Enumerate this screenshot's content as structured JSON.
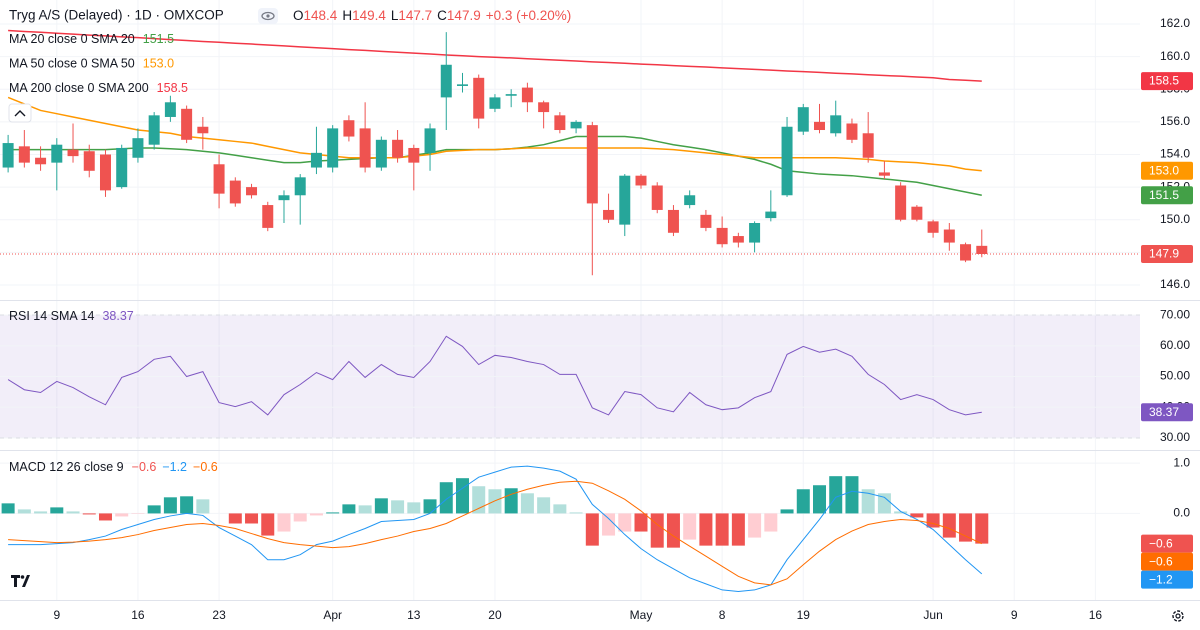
{
  "chart_data": [
    {
      "type": "candlestick",
      "title": "Tryg A/S (Delayed) · 1D · OMXCOP",
      "ohlc_keys": [
        "O",
        "H",
        "L",
        "C"
      ],
      "change": "+0.3 (+0.20%)",
      "up_color": "#26a69a",
      "down_color": "#ef5350",
      "xlim": [
        -0.5,
        69.75
      ],
      "xticks": [
        {
          "value": 3,
          "label": "9"
        },
        {
          "value": 8,
          "label": "16"
        },
        {
          "value": 13,
          "label": "23"
        },
        {
          "value": 20,
          "label": "Apr"
        },
        {
          "value": 25,
          "label": "13"
        },
        {
          "value": 30,
          "label": "20"
        },
        {
          "value": 39,
          "label": "May"
        },
        {
          "value": 44,
          "label": "8"
        },
        {
          "value": 49,
          "label": "19"
        },
        {
          "value": 57,
          "label": "Jun"
        },
        {
          "value": 62,
          "label": "9"
        },
        {
          "value": 67,
          "label": "16"
        }
      ],
      "ylim": [
        145.08,
        163.47
      ],
      "yticks": [
        {
          "value": 146,
          "label": "146.0"
        },
        {
          "value": 148,
          "label": "148.0"
        },
        {
          "value": 150,
          "label": "150.0"
        },
        {
          "value": 152,
          "label": "152.0"
        },
        {
          "value": 154,
          "label": "154.0"
        },
        {
          "value": 156,
          "label": "156.0"
        },
        {
          "value": 158,
          "label": "158.0"
        },
        {
          "value": 160,
          "label": "160.0"
        },
        {
          "value": 162,
          "label": "162.0"
        }
      ],
      "grid": true,
      "open": [
        153.2,
        154.5,
        153.8,
        153.5,
        154.3,
        154.2,
        154.0,
        152.0,
        153.8,
        154.6,
        156.3,
        156.8,
        155.7,
        153.4,
        152.4,
        152.0,
        150.9,
        151.2,
        151.5,
        153.2,
        153.2,
        156.1,
        155.6,
        153.2,
        154.9,
        154.4,
        154.1,
        157.5,
        158.2,
        158.7,
        156.8,
        157.6,
        158.1,
        157.2,
        156.4,
        155.6,
        155.8,
        150.6,
        149.7,
        152.7,
        152.1,
        150.6,
        150.9,
        150.3,
        149.5,
        149.0,
        148.6,
        150.1,
        151.5,
        155.4,
        156.0,
        155.3,
        155.9,
        155.3,
        152.9,
        152.1,
        150.8,
        149.9,
        149.4,
        148.5,
        148.4
      ],
      "high": [
        155.2,
        155.5,
        154.5,
        155.0,
        155.9,
        154.6,
        154.3,
        154.6,
        155.6,
        156.6,
        157.6,
        157.0,
        156.3,
        154.0,
        152.6,
        152.2,
        151.1,
        151.8,
        152.8,
        155.7,
        155.8,
        156.4,
        157.2,
        155.1,
        155.5,
        154.6,
        155.9,
        161.5,
        159.0,
        158.9,
        157.7,
        158.0,
        158.4,
        157.3,
        156.6,
        156.1,
        156.0,
        151.6,
        152.8,
        152.8,
        152.3,
        150.9,
        151.8,
        150.6,
        150.2,
        149.2,
        149.9,
        151.8,
        156.3,
        157.1,
        157.1,
        157.3,
        156.2,
        156.6,
        153.6,
        152.3,
        150.9,
        150.0,
        149.8,
        148.6,
        149.4
      ],
      "low": [
        152.9,
        153.2,
        153.0,
        151.8,
        153.5,
        152.6,
        151.4,
        151.9,
        153.5,
        154.3,
        156.0,
        154.7,
        154.3,
        150.7,
        150.8,
        151.3,
        149.3,
        149.8,
        149.7,
        152.8,
        152.9,
        154.8,
        152.9,
        153.0,
        153.5,
        151.8,
        153.0,
        155.5,
        157.8,
        155.6,
        156.6,
        156.9,
        156.6,
        155.6,
        155.3,
        155.3,
        146.6,
        149.8,
        149.0,
        151.9,
        150.4,
        149.0,
        150.7,
        149.3,
        148.3,
        148.3,
        148.0,
        149.9,
        151.4,
        155.2,
        155.3,
        155.1,
        154.7,
        153.5,
        152.5,
        149.9,
        149.9,
        148.9,
        148.1,
        147.4,
        147.7
      ],
      "close": [
        154.7,
        153.5,
        153.4,
        154.6,
        153.9,
        153.0,
        151.8,
        154.4,
        155.0,
        156.4,
        157.2,
        154.9,
        155.3,
        151.6,
        151.0,
        151.5,
        149.5,
        151.5,
        152.6,
        154.1,
        155.6,
        155.1,
        153.2,
        154.9,
        153.8,
        153.5,
        155.6,
        159.5,
        158.3,
        156.2,
        157.5,
        157.7,
        157.2,
        156.6,
        155.5,
        156.0,
        151.0,
        150.0,
        152.7,
        152.1,
        150.6,
        149.2,
        151.5,
        149.5,
        148.5,
        148.6,
        149.8,
        150.5,
        155.7,
        156.9,
        155.5,
        156.4,
        154.9,
        153.8,
        152.7,
        150.0,
        150.0,
        149.2,
        148.6,
        147.5,
        147.9
      ],
      "series": [
        {
          "name": "MA 20 close 0 SMA 20",
          "color": "#43a047",
          "last_label": "151.5",
          "values": [
            154.3,
            154.3,
            154.3,
            154.3,
            154.3,
            154.3,
            154.3,
            154.35,
            154.4,
            154.4,
            154.35,
            154.3,
            154.2,
            154.1,
            153.95,
            153.8,
            153.65,
            153.5,
            153.5,
            153.6,
            153.65,
            153.7,
            153.75,
            153.8,
            153.8,
            153.95,
            154.1,
            154.3,
            154.3,
            154.3,
            154.3,
            154.35,
            154.45,
            154.6,
            154.85,
            155.1,
            155.1,
            155.1,
            155.1,
            155.0,
            154.8,
            154.6,
            154.45,
            154.3,
            154.1,
            153.9,
            153.7,
            153.4,
            153.0,
            152.9,
            152.8,
            152.75,
            152.7,
            152.6,
            152.5,
            152.4,
            152.3,
            152.1,
            151.9,
            151.7,
            151.5
          ]
        },
        {
          "name": "MA 50 close 0 SMA 50",
          "color": "#ff9800",
          "last_label": "153.0",
          "values": [
            157.5,
            157.1,
            156.7,
            156.5,
            156.3,
            156.1,
            155.9,
            155.7,
            155.5,
            155.4,
            155.3,
            155.1,
            155.0,
            154.9,
            154.8,
            154.7,
            154.5,
            154.3,
            154.1,
            154.0,
            153.9,
            153.8,
            153.8,
            153.8,
            153.8,
            153.9,
            154.0,
            154.2,
            154.25,
            154.3,
            154.3,
            154.35,
            154.4,
            154.4,
            154.4,
            154.4,
            154.4,
            154.4,
            154.4,
            154.4,
            154.35,
            154.3,
            154.2,
            154.1,
            154.0,
            153.9,
            153.8,
            153.8,
            153.8,
            153.8,
            153.8,
            153.8,
            153.75,
            153.7,
            153.6,
            153.55,
            153.5,
            153.4,
            153.3,
            153.1,
            153.0
          ]
        },
        {
          "name": "MA 200 close 0 SMA 200",
          "color": "#f23645",
          "last_label": "158.5",
          "values": [
            161.6,
            161.54,
            161.49,
            161.43,
            161.38,
            161.32,
            161.27,
            161.21,
            161.16,
            161.1,
            161.04,
            160.99,
            160.93,
            160.88,
            160.82,
            160.77,
            160.71,
            160.66,
            160.6,
            160.54,
            160.49,
            160.43,
            160.38,
            160.32,
            160.27,
            160.21,
            160.16,
            160.1,
            160.05,
            160.0,
            159.96,
            159.92,
            159.87,
            159.82,
            159.78,
            159.73,
            159.68,
            159.64,
            159.59,
            159.54,
            159.5,
            159.45,
            159.4,
            159.36,
            159.31,
            159.26,
            159.22,
            159.17,
            159.12,
            159.08,
            159.03,
            158.98,
            158.94,
            158.89,
            158.84,
            158.8,
            158.75,
            158.7,
            158.6,
            158.55,
            158.5
          ]
        }
      ]
    },
    {
      "type": "rsi",
      "title": "RSI 14 SMA 14",
      "color": "#7e57c2",
      "band": [
        30,
        70
      ],
      "band_color": "#7e57c2",
      "ylim": [
        26.07,
        74.92
      ],
      "yticks": [
        {
          "value": 30,
          "label": "30.00"
        },
        {
          "value": 40,
          "label": "40.00"
        },
        {
          "value": 50,
          "label": "50.00"
        },
        {
          "value": 60,
          "label": "60.00"
        },
        {
          "value": 70,
          "label": "70.00"
        }
      ],
      "values": [
        49,
        45.7,
        44.8,
        48.4,
        46.4,
        43.4,
        40.8,
        49.7,
        51.6,
        55.6,
        56.6,
        50,
        51.6,
        41.5,
        40.2,
        41.8,
        37.5,
        44.1,
        47.4,
        51.3,
        49,
        54.9,
        49.7,
        53.9,
        50.7,
        49.7,
        54.9,
        63.1,
        59.8,
        53.9,
        56.9,
        56.2,
        54.9,
        53.9,
        50.7,
        50.7,
        39.8,
        37.5,
        45.1,
        44.1,
        39.8,
        38.5,
        44.8,
        40.8,
        39.2,
        39.8,
        43.1,
        45.1,
        57.2,
        59.8,
        57.9,
        58.9,
        56.6,
        50.7,
        47.4,
        42.5,
        44.1,
        42.5,
        39.2,
        37.5,
        38.37
      ]
    },
    {
      "type": "macd",
      "title": "MACD 12 26 close 9",
      "ylim": [
        -1.72,
        1.26
      ],
      "yticks": [
        {
          "value": 0,
          "label": "0.0"
        },
        {
          "value": 1,
          "label": "1.0"
        }
      ],
      "histogram": {
        "last_label": "−0.6",
        "colors": [
          "#26a69a",
          "#b2dfdb",
          "#ef5350",
          "#ffcdd2"
        ],
        "values": [
          0.2,
          0.08,
          0.04,
          0.12,
          0.04,
          -0.02,
          -0.14,
          -0.06,
          -0.01,
          0.16,
          0.32,
          0.34,
          0.28,
          0,
          -0.2,
          -0.2,
          -0.44,
          -0.36,
          -0.16,
          -0.04,
          0.02,
          0.18,
          0.16,
          0.3,
          0.26,
          0.22,
          0.28,
          0.62,
          0.7,
          0.54,
          0.48,
          0.5,
          0.4,
          0.32,
          0.18,
          0.02,
          -0.64,
          -0.44,
          -0.36,
          -0.36,
          -0.68,
          -0.68,
          -0.52,
          -0.64,
          -0.64,
          -0.64,
          -0.48,
          -0.36,
          0.08,
          0.48,
          0.56,
          0.74,
          0.74,
          0.48,
          0.4,
          0.04,
          -0.08,
          -0.28,
          -0.48,
          -0.56,
          -0.6
        ]
      },
      "series": [
        {
          "color": "#2196f3",
          "last_label": "−1.2",
          "values": [
            -0.62,
            -0.62,
            -0.62,
            -0.6,
            -0.58,
            -0.52,
            -0.45,
            -0.32,
            -0.22,
            -0.12,
            -0.05,
            0,
            -0.04,
            -0.28,
            -0.45,
            -0.62,
            -0.92,
            -0.92,
            -0.82,
            -0.62,
            -0.55,
            -0.42,
            -0.3,
            -0.16,
            -0.14,
            -0.12,
            0.0,
            0.28,
            0.5,
            0.72,
            0.82,
            0.92,
            0.94,
            0.9,
            0.84,
            0.68,
            0.18,
            -0.1,
            -0.42,
            -0.7,
            -0.92,
            -1.1,
            -1.28,
            -1.4,
            -1.52,
            -1.55,
            -1.52,
            -1.42,
            -0.92,
            -0.52,
            -0.12,
            0.32,
            0.44,
            0.4,
            0.32,
            0.04,
            -0.12,
            -0.32,
            -0.62,
            -0.92,
            -1.2
          ]
        },
        {
          "color": "#ff6d00",
          "last_label": "−0.6",
          "values": [
            -0.52,
            -0.54,
            -0.56,
            -0.58,
            -0.57,
            -0.55,
            -0.52,
            -0.48,
            -0.42,
            -0.34,
            -0.28,
            -0.22,
            -0.2,
            -0.24,
            -0.3,
            -0.4,
            -0.5,
            -0.58,
            -0.62,
            -0.65,
            -0.68,
            -0.66,
            -0.6,
            -0.52,
            -0.45,
            -0.36,
            -0.3,
            -0.2,
            -0.05,
            0.1,
            0.25,
            0.38,
            0.48,
            0.56,
            0.62,
            0.64,
            0.6,
            0.45,
            0.28,
            0.05,
            -0.22,
            -0.45,
            -0.65,
            -0.85,
            -1.05,
            -1.25,
            -1.38,
            -1.42,
            -1.3,
            -1.02,
            -0.75,
            -0.52,
            -0.35,
            -0.22,
            -0.16,
            -0.12,
            -0.14,
            -0.2,
            -0.3,
            -0.45,
            -0.6
          ]
        }
      ]
    }
  ]
}
